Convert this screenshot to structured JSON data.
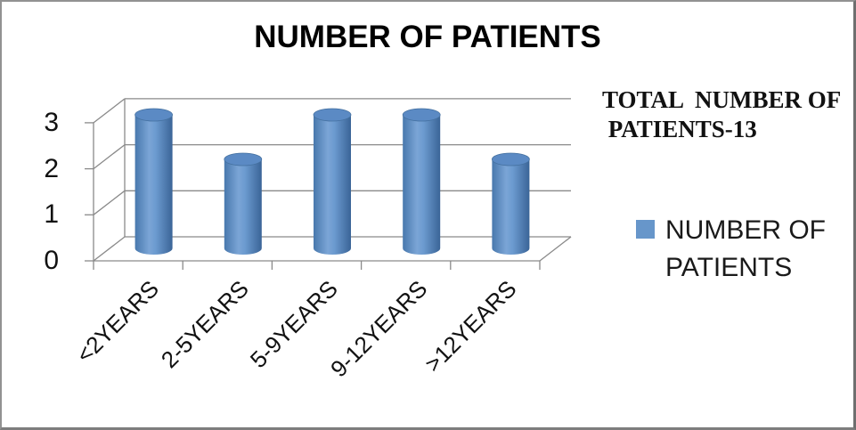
{
  "ui": {
    "title": "NUMBER OF PATIENTS",
    "annotation": {
      "line1": "TOTAL  NUMBER OF",
      "line2": " PATIENTS-13"
    },
    "legend": {
      "label": "NUMBER OF PATIENTS",
      "marker_color": "#6796ca"
    }
  },
  "chart_data": {
    "type": "bar",
    "subtype": "3d-cylinder",
    "title": "NUMBER OF PATIENTS",
    "categories": [
      "<2YEARS",
      "2-5YEARS",
      "5-9YEARS",
      "9-12YEARS",
      ">12YEARS"
    ],
    "series": [
      {
        "name": "NUMBER OF PATIENTS",
        "values": [
          3,
          2,
          3,
          3,
          2
        ]
      }
    ],
    "annotation": "TOTAL NUMBER OF PATIENTS-13",
    "total_patients": 13,
    "xlabel": "",
    "ylabel": "",
    "ylim": [
      0,
      3
    ],
    "yticks": [
      0,
      1,
      2,
      3
    ],
    "grid": true,
    "legend_position": "right",
    "colors": {
      "bar_gradient": [
        "#4878ad",
        "#7ba5d6",
        "#6c9bd0",
        "#3a6497"
      ],
      "bar_top": "#5b8ac4",
      "axis_line": "#8a8a8a",
      "text": "#111111"
    }
  }
}
